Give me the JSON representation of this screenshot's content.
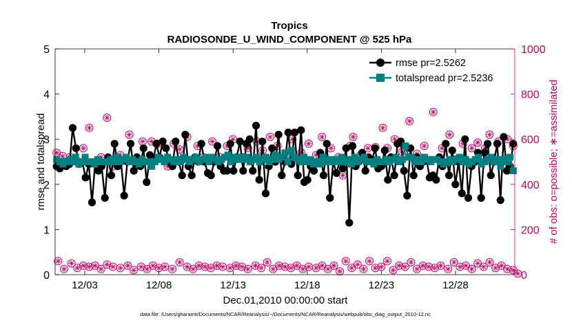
{
  "chart_data": {
    "type": "line",
    "title_line1": "Tropics",
    "title_line2": "RADIOSONDE_U_WIND_COMPONENT @ 525 hPa",
    "xlabel": "Dec.01,2010 00:00:00 start",
    "ylabel_left": "rmse and totalspread",
    "ylabel_right": "# of obs: o=possible; ∗=assimilated",
    "footnote": "data file: /Users/gharamti/Documents/NCAR/Reanalysis/~/Documents/NCAR/Reanalysis/webpub/obs_diag_output_2010-12.nc",
    "x_range": [
      1,
      32
    ],
    "x_ticks": [
      {
        "value": 3,
        "label": "12/03"
      },
      {
        "value": 8,
        "label": "12/08"
      },
      {
        "value": 13,
        "label": "12/13"
      },
      {
        "value": 18,
        "label": "12/18"
      },
      {
        "value": 23,
        "label": "12/23"
      },
      {
        "value": 28,
        "label": "12/28"
      }
    ],
    "y_left_range": [
      0,
      5
    ],
    "y_left_ticks": [
      "0",
      "1",
      "2",
      "3",
      "4",
      "5"
    ],
    "y_right_range": [
      0,
      1000
    ],
    "y_right_ticks": [
      "0",
      "200",
      "400",
      "600",
      "800",
      "1000"
    ],
    "colors": {
      "rmse": "#000000",
      "totalspread": "#008080",
      "obs": "#cc0066",
      "axis": "#000000"
    },
    "legend": {
      "placement": "top-right",
      "entries": [
        "rmse pr=2.5262",
        "totalspread pr=2.5236"
      ]
    },
    "series": [
      {
        "name": "rmse",
        "axis": "left",
        "marker": "circle",
        "values": [
          2.4,
          2.35,
          2.5,
          2.4,
          2.45,
          3.25,
          2.8,
          2.45,
          2.5,
          2.15,
          2.45,
          1.6,
          2.5,
          2.3,
          2.4,
          1.7,
          2.6,
          2.2,
          2.9,
          2.4,
          2.5,
          1.75,
          2.5,
          2.9,
          2.3,
          2.6,
          2.4,
          2.8,
          2.05,
          2.65,
          2.5,
          2.9,
          2.6,
          2.95,
          2.8,
          2.5,
          2.4,
          2.95,
          2.5,
          2.2,
          3.1,
          2.4,
          2.2,
          2.6,
          2.5,
          2.9,
          2.5,
          2.25,
          2.2,
          2.5,
          2.85,
          2.4,
          2.3,
          2.3,
          2.9,
          2.3,
          2.6,
          2.95,
          2.3,
          2.9,
          3.0,
          2.3,
          3.3,
          2.1,
          2.95,
          1.8,
          2.4,
          2.8,
          2.5,
          3.1,
          2.2,
          2.5,
          3.15,
          2.45,
          3.15,
          2.2,
          3.2,
          2.05,
          2.1,
          2.4,
          2.3,
          2.5,
          2.7,
          2.2,
          2.9,
          1.7,
          2.5,
          2.25,
          2.5,
          2.35,
          2.8,
          1.15,
          2.85,
          2.4,
          2.5,
          2.7,
          2.3,
          2.6,
          2.5,
          2.8,
          2.35,
          2.4,
          2.75,
          2.1,
          2.6,
          2.2,
          2.9,
          2.95,
          2.3,
          1.75,
          2.8,
          2.2,
          2.6,
          2.4,
          2.5,
          2.55,
          2.15,
          2.2,
          2.1,
          2.6,
          2.4,
          2.9,
          2.2,
          2.75,
          2.0,
          2.5,
          1.8,
          3.0,
          1.7,
          2.4,
          2.5,
          2.7,
          1.7,
          2.7,
          2.9,
          2.2,
          2.5,
          2.9,
          1.65,
          3.05,
          2.3,
          2.4,
          2.9
        ]
      },
      {
        "name": "totalspread",
        "axis": "left",
        "marker": "square",
        "values": [
          2.55,
          2.5,
          2.45,
          2.5,
          2.55,
          2.5,
          2.6,
          2.45,
          2.5,
          2.6,
          2.5,
          2.5,
          2.45,
          2.55,
          2.5,
          2.5,
          2.5,
          2.55,
          2.5,
          2.6,
          2.5,
          2.55,
          2.6,
          2.5,
          2.55,
          2.5,
          2.45,
          2.55,
          2.5,
          2.5,
          2.4,
          2.5,
          2.6,
          2.55,
          2.5,
          2.6,
          2.55,
          2.5,
          2.55,
          2.5,
          2.6,
          2.55,
          2.5,
          2.55,
          2.6,
          2.5,
          2.55,
          2.6,
          2.5,
          2.6,
          2.55,
          2.5,
          2.55,
          2.6,
          2.65,
          2.5,
          2.6,
          2.55,
          2.6,
          2.55,
          2.6,
          2.5,
          2.55,
          2.6,
          2.5,
          2.55,
          2.6,
          2.5,
          2.55,
          2.65,
          2.55,
          2.6,
          2.7,
          2.5,
          2.75,
          2.6,
          2.55,
          2.5,
          2.6,
          2.5,
          2.55,
          2.45,
          2.5,
          2.45,
          2.6,
          2.5,
          2.55,
          2.5,
          2.55,
          2.5,
          2.6,
          2.5,
          2.55,
          2.45,
          2.6,
          2.5,
          2.55,
          2.6,
          2.5,
          2.5,
          2.45,
          2.55,
          2.5,
          2.5,
          2.55,
          2.5,
          2.55,
          2.6,
          2.5,
          2.55,
          2.85,
          2.6,
          2.6,
          2.5,
          2.55,
          2.5,
          2.6,
          2.55,
          2.5,
          2.55,
          2.55,
          2.5,
          2.45,
          2.5,
          2.55,
          2.5,
          2.55,
          2.6,
          2.5,
          2.55,
          2.45,
          2.5,
          2.55,
          2.6,
          2.45,
          2.5,
          2.55,
          2.6,
          2.5,
          2.55,
          2.4,
          2.55,
          2.5,
          2.6,
          2.3
        ]
      },
      {
        "name": "obs possible / assimilated (upper cluster)",
        "axis": "right",
        "marker": "circle-asterisk",
        "points": [
          [
            1.1,
            540
          ],
          [
            1.5,
            525
          ],
          [
            2,
            520
          ],
          [
            2.4,
            510
          ],
          [
            2.9,
            560
          ],
          [
            3.3,
            650
          ],
          [
            4.1,
            520
          ],
          [
            4.5,
            695
          ],
          [
            4.9,
            480
          ],
          [
            5.4,
            530
          ],
          [
            6,
            620
          ],
          [
            6.4,
            510
          ],
          [
            6.9,
            590
          ],
          [
            7.5,
            590
          ],
          [
            7.9,
            580
          ],
          [
            8.6,
            480
          ],
          [
            9,
            580
          ],
          [
            9.4,
            555
          ],
          [
            9.9,
            610
          ],
          [
            10.6,
            570
          ],
          [
            11,
            520
          ],
          [
            11.6,
            590
          ],
          [
            12.1,
            520
          ],
          [
            12.6,
            570
          ],
          [
            13,
            600
          ],
          [
            13.6,
            520
          ],
          [
            14,
            560
          ],
          [
            14.6,
            590
          ],
          [
            15,
            550
          ],
          [
            15.5,
            610
          ],
          [
            16,
            570
          ],
          [
            16.6,
            520
          ],
          [
            17,
            600
          ],
          [
            17.6,
            540
          ],
          [
            18.1,
            580
          ],
          [
            18.6,
            530
          ],
          [
            19,
            610
          ],
          [
            19.6,
            560
          ],
          [
            20.1,
            520
          ],
          [
            20.4,
            440
          ],
          [
            20.9,
            570
          ],
          [
            21.1,
            610
          ],
          [
            21.6,
            530
          ],
          [
            22.1,
            560
          ],
          [
            22.6,
            565
          ],
          [
            23.1,
            650
          ],
          [
            23.4,
            560
          ],
          [
            23.9,
            600
          ],
          [
            24.4,
            545
          ],
          [
            24.9,
            680
          ],
          [
            25.4,
            535
          ],
          [
            25.9,
            570
          ],
          [
            26.5,
            720
          ],
          [
            27.1,
            560
          ],
          [
            27.6,
            620
          ],
          [
            27.9,
            510
          ],
          [
            28.5,
            580
          ],
          [
            29.1,
            560
          ],
          [
            29.5,
            585
          ],
          [
            30,
            560
          ],
          [
            30.3,
            620
          ],
          [
            30.9,
            590
          ],
          [
            31.5,
            600
          ],
          [
            31.9,
            570
          ]
        ]
      },
      {
        "name": "obs possible / assimilated (lower cluster)",
        "axis": "right",
        "marker": "circle-asterisk",
        "points": [
          [
            1.2,
            60
          ],
          [
            1.6,
            25
          ],
          [
            2.1,
            50
          ],
          [
            2.5,
            30
          ],
          [
            2.9,
            40
          ],
          [
            3.3,
            35
          ],
          [
            3.7,
            40
          ],
          [
            4.1,
            25
          ],
          [
            4.5,
            45
          ],
          [
            4.9,
            35
          ],
          [
            5.4,
            30
          ],
          [
            5.9,
            40
          ],
          [
            6.3,
            20
          ],
          [
            6.8,
            35
          ],
          [
            7.2,
            25
          ],
          [
            7.6,
            40
          ],
          [
            8,
            30
          ],
          [
            8.4,
            35
          ],
          [
            8.9,
            25
          ],
          [
            9.4,
            55
          ],
          [
            9.9,
            35
          ],
          [
            10.3,
            25
          ],
          [
            10.7,
            40
          ],
          [
            11.1,
            35
          ],
          [
            11.5,
            30
          ],
          [
            11.9,
            40
          ],
          [
            12.3,
            35
          ],
          [
            12.8,
            30
          ],
          [
            13.2,
            40
          ],
          [
            13.6,
            35
          ],
          [
            14,
            25
          ],
          [
            14.5,
            40
          ],
          [
            14.9,
            30
          ],
          [
            15.3,
            55
          ],
          [
            15.7,
            25
          ],
          [
            16.1,
            40
          ],
          [
            16.5,
            35
          ],
          [
            16.9,
            30
          ],
          [
            17.3,
            40
          ],
          [
            17.7,
            25
          ],
          [
            18.1,
            35
          ],
          [
            18.6,
            30
          ],
          [
            19,
            40
          ],
          [
            19.4,
            25
          ],
          [
            19.8,
            40
          ],
          [
            20.2,
            15
          ],
          [
            20.6,
            60
          ],
          [
            21,
            30
          ],
          [
            21.4,
            45
          ],
          [
            21.8,
            25
          ],
          [
            22.2,
            60
          ],
          [
            22.6,
            30
          ],
          [
            23,
            35
          ],
          [
            23.4,
            60
          ],
          [
            23.8,
            20
          ],
          [
            24.2,
            40
          ],
          [
            24.6,
            35
          ],
          [
            25,
            55
          ],
          [
            25.4,
            25
          ],
          [
            25.8,
            40
          ],
          [
            26.2,
            35
          ],
          [
            26.6,
            30
          ],
          [
            27,
            40
          ],
          [
            27.5,
            25
          ],
          [
            27.9,
            55
          ],
          [
            28.3,
            35
          ],
          [
            28.7,
            40
          ],
          [
            29.1,
            25
          ],
          [
            29.5,
            50
          ],
          [
            29.9,
            35
          ],
          [
            30.3,
            55
          ],
          [
            30.7,
            30
          ],
          [
            31.1,
            40
          ],
          [
            31.5,
            25
          ],
          [
            31.9,
            20
          ],
          [
            32.2,
            5
          ]
        ]
      }
    ]
  }
}
